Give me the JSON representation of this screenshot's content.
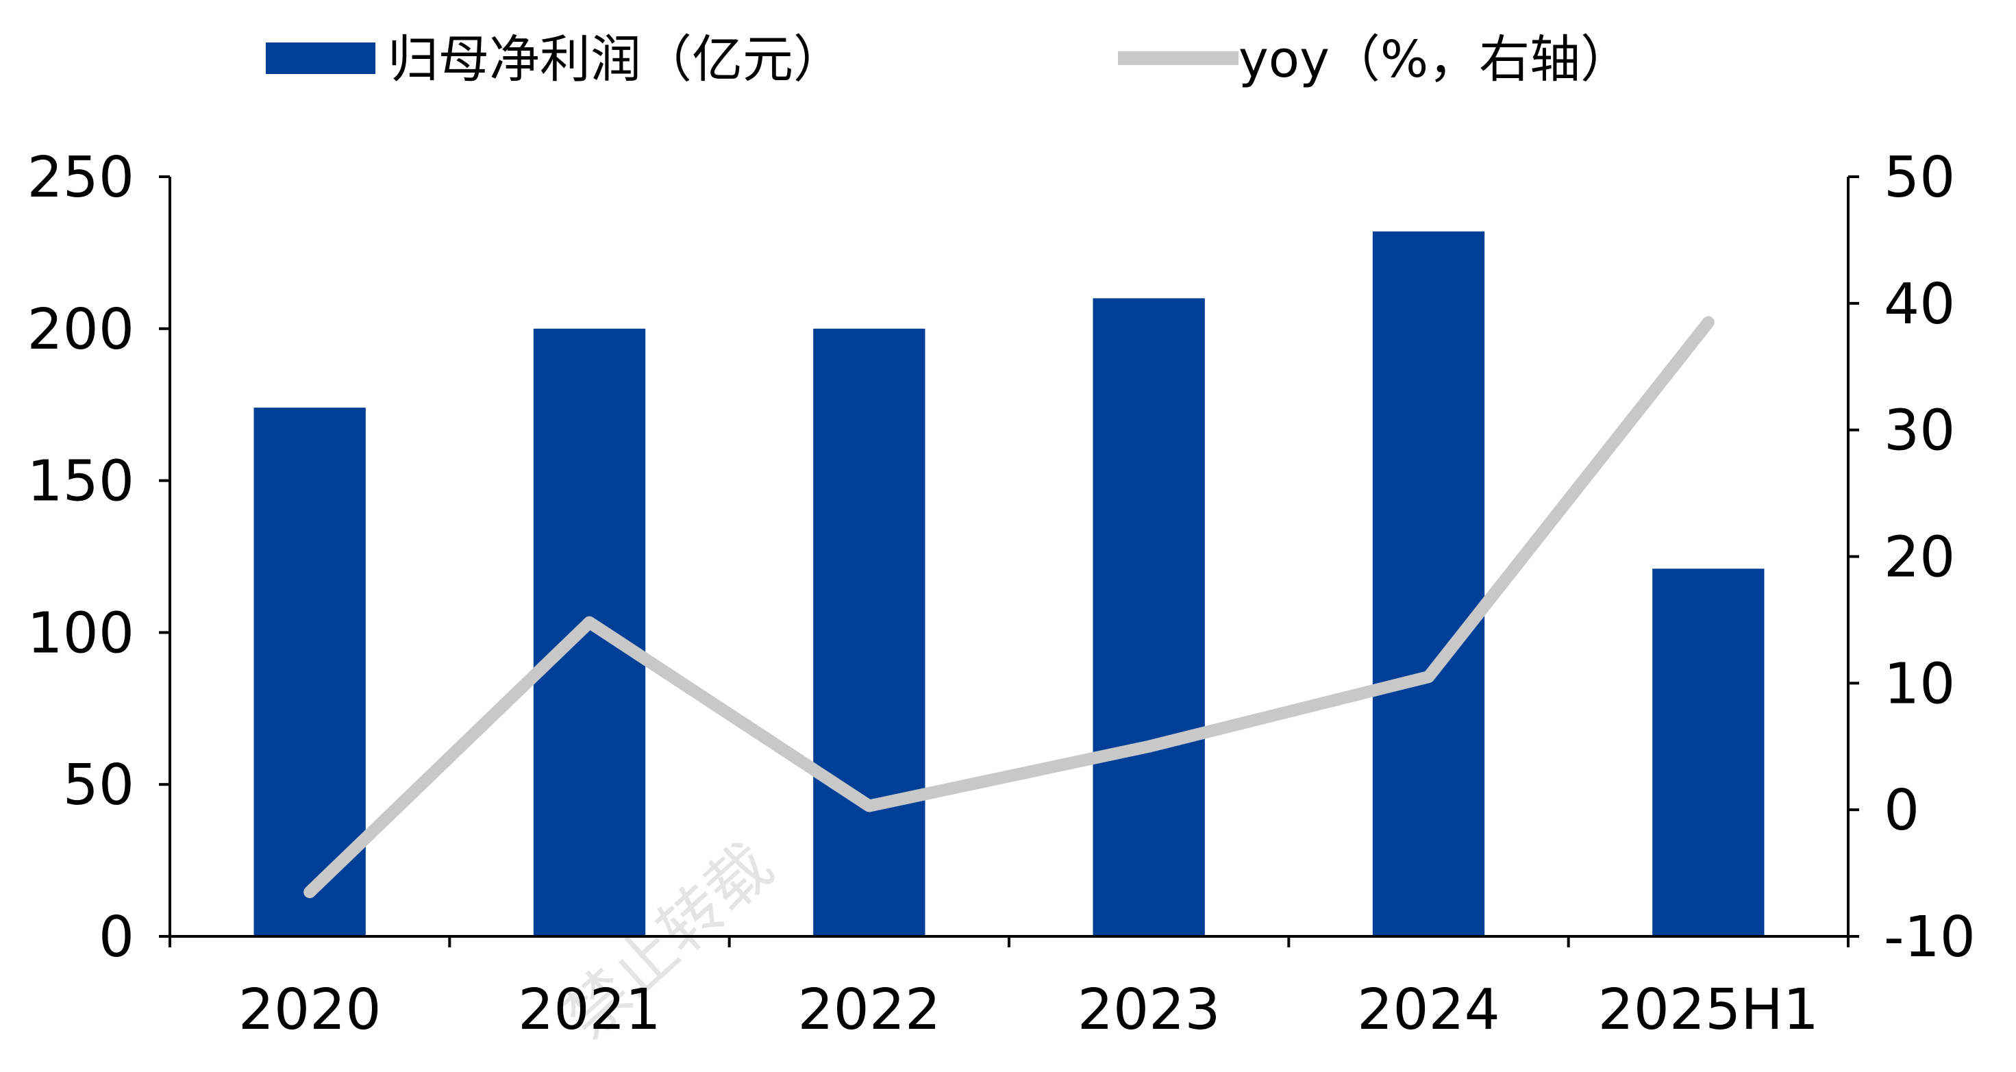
{
  "chart_data": {
    "type": "bar",
    "categories": [
      "2020",
      "2021",
      "2022",
      "2023",
      "2024",
      "2025H1"
    ],
    "series": [
      {
        "name": "归母净利润（亿元）",
        "type": "bar",
        "axis": "left",
        "color": "#003F98",
        "values": [
          174,
          200,
          200,
          210,
          232,
          121
        ]
      },
      {
        "name": "yoy（%，右轴）",
        "type": "line",
        "axis": "right",
        "color": "#C8C8C8",
        "values": [
          -6.5,
          14.8,
          0.3,
          5.0,
          10.5,
          38.5
        ]
      }
    ],
    "y_left": {
      "range": [
        0,
        250
      ],
      "ticks": [
        "0",
        "50",
        "100",
        "150",
        "200",
        "250"
      ]
    },
    "y_right": {
      "range": [
        -10,
        50
      ],
      "ticks": [
        "-10",
        "0",
        "10",
        "20",
        "30",
        "40",
        "50"
      ]
    },
    "legend_position": "top",
    "grid": false
  },
  "watermark": "禁止转载"
}
